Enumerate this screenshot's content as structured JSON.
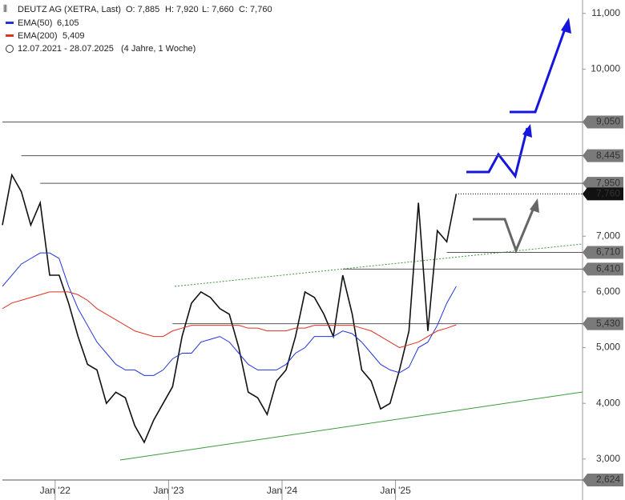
{
  "chart_data": {
    "type": "line",
    "title": "DEUTZ AG (XETRA, Last)",
    "ohlc": [
      "O: 7,885",
      "H: 7,920",
      "L: 7,660",
      "C: 7,760"
    ],
    "date_range": "12.07.2021 - 28.07.2025",
    "period": "(4 Jahre, 1 Woche)",
    "x": [
      "2021-07",
      "2021-08",
      "2021-09",
      "2021-10",
      "2021-11",
      "2021-12",
      "2022-01",
      "2022-02",
      "2022-03",
      "2022-04",
      "2022-05",
      "2022-06",
      "2022-07",
      "2022-08",
      "2022-09",
      "2022-10",
      "2022-11",
      "2022-12",
      "2023-01",
      "2023-02",
      "2023-03",
      "2023-04",
      "2023-05",
      "2023-06",
      "2023-07",
      "2023-08",
      "2023-09",
      "2023-10",
      "2023-11",
      "2023-12",
      "2024-01",
      "2024-02",
      "2024-03",
      "2024-04",
      "2024-05",
      "2024-06",
      "2024-07",
      "2024-08",
      "2024-09",
      "2024-10",
      "2024-11",
      "2024-12",
      "2025-01",
      "2025-02",
      "2025-03",
      "2025-04",
      "2025-05",
      "2025-06",
      "2025-07"
    ],
    "series": [
      {
        "color": "#111111",
        "values": [
          7.2,
          8.1,
          7.8,
          7.2,
          7.6,
          6.3,
          6.3,
          5.8,
          5.2,
          4.7,
          4.6,
          4.0,
          4.2,
          4.1,
          3.6,
          3.3,
          3.7,
          4.0,
          4.3,
          5.2,
          5.8,
          6.0,
          5.9,
          5.7,
          5.6,
          5.0,
          4.2,
          4.1,
          3.8,
          4.4,
          4.6,
          5.2,
          6.0,
          5.9,
          5.6,
          5.2,
          6.3,
          5.6,
          4.6,
          4.4,
          3.9,
          4.0,
          4.6,
          5.3,
          7.6,
          5.3,
          7.1,
          6.9,
          7.76
        ]
      },
      {
        "name": "EMA(50)",
        "value_label": "6,105",
        "color": "#2233dd",
        "values": [
          6.1,
          6.3,
          6.5,
          6.6,
          6.7,
          6.7,
          6.6,
          6.1,
          5.7,
          5.4,
          5.1,
          4.9,
          4.7,
          4.6,
          4.6,
          4.5,
          4.5,
          4.6,
          4.8,
          4.9,
          4.9,
          5.1,
          5.15,
          5.2,
          5.1,
          4.9,
          4.7,
          4.6,
          4.6,
          4.6,
          4.7,
          4.9,
          5.0,
          5.2,
          5.2,
          5.2,
          5.3,
          5.25,
          5.1,
          4.9,
          4.7,
          4.6,
          4.55,
          4.65,
          5.0,
          5.1,
          5.4,
          5.8,
          6.1
        ]
      },
      {
        "name": "EMA(200)",
        "value_label": "5,409",
        "color": "#dd3322",
        "values": [
          5.7,
          5.8,
          5.85,
          5.9,
          5.95,
          6.0,
          6.0,
          6.0,
          5.95,
          5.85,
          5.7,
          5.6,
          5.5,
          5.4,
          5.3,
          5.25,
          5.2,
          5.2,
          5.3,
          5.35,
          5.4,
          5.4,
          5.4,
          5.4,
          5.4,
          5.4,
          5.35,
          5.35,
          5.3,
          5.3,
          5.3,
          5.35,
          5.35,
          5.4,
          5.4,
          5.4,
          5.4,
          5.4,
          5.35,
          5.3,
          5.2,
          5.1,
          5.0,
          5.05,
          5.1,
          5.2,
          5.3,
          5.35,
          5.41
        ]
      }
    ],
    "ylim": [
      2.624,
      11.24
    ],
    "yticks": [
      {
        "value": 3,
        "label": "3,000"
      },
      {
        "value": 4,
        "label": "4,000"
      },
      {
        "value": 5,
        "label": "5,000"
      },
      {
        "value": 6,
        "label": "6,000"
      },
      {
        "value": 7,
        "label": "7,000"
      },
      {
        "value": 10,
        "label": "10,000"
      },
      {
        "value": 11,
        "label": "11,000"
      }
    ],
    "xticks": [
      {
        "value": "2022-01",
        "label": "Jan '22"
      },
      {
        "value": "2023-01",
        "label": "Jan '23"
      },
      {
        "value": "2024-01",
        "label": "Jan '24"
      },
      {
        "value": "2025-01",
        "label": "Jan '25"
      }
    ],
    "levels": [
      {
        "value": 9.05,
        "label": "9,050",
        "from": "2021-07"
      },
      {
        "value": 8.445,
        "label": "8,445",
        "from": "2021-09"
      },
      {
        "value": 7.95,
        "label": "7,950",
        "from": "2021-11"
      },
      {
        "value": 6.71,
        "label": "6,710",
        "from": "2025-06"
      },
      {
        "value": 6.41,
        "label": "6,410",
        "from": "2024-07"
      },
      {
        "value": 5.43,
        "label": "5,430",
        "from": "2023-01"
      },
      {
        "value": 2.624,
        "label": "2,624",
        "from": "2021-07"
      }
    ],
    "last": {
      "value": 7.76,
      "label": "7,760"
    }
  }
}
